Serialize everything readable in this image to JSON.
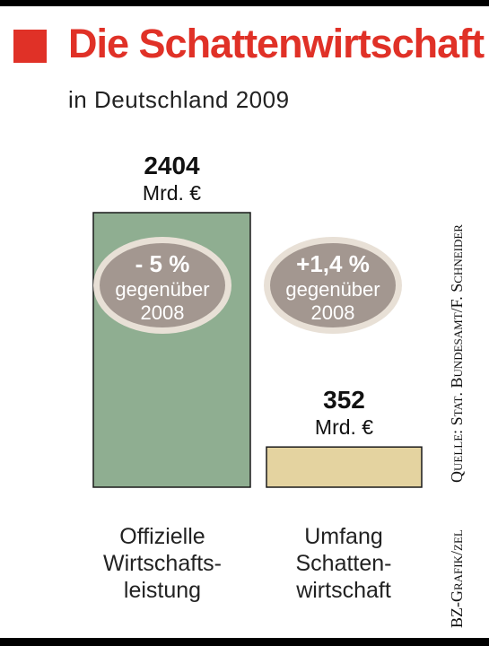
{
  "header": {
    "title": "Die Schattenwirtschaft",
    "subtitle": "in Deutschland 2009",
    "title_color": "#e03127",
    "square_color": "#e03127"
  },
  "side_text": {
    "source": "Quelle: Stat. Bundesamt/F. Schneider",
    "credit": "BZ-Grafik/zel"
  },
  "chart_data": {
    "type": "bar",
    "title": "Die Schattenwirtschaft",
    "subtitle": "in Deutschland 2009",
    "categories": [
      "Offizielle Wirtschaftsleistung",
      "Umfang Schattenwirtschaft"
    ],
    "category_lines": [
      [
        "Offizielle",
        "Wirtschafts-",
        "leistung"
      ],
      [
        "Umfang",
        "Schatten-",
        "wirtschaft"
      ]
    ],
    "values": [
      2404,
      352
    ],
    "value_labels": [
      "2404",
      "352"
    ],
    "unit": "Mrd. €",
    "bar_colors": [
      "#8fae91",
      "#e4d3a0"
    ],
    "change": [
      {
        "value": "- 5 %",
        "text": "gegenüber",
        "year": "2008"
      },
      {
        "value": "+1,4 %",
        "text": "gegenüber",
        "year": "2008"
      }
    ],
    "badge_colors": {
      "fill": "#a39790",
      "ring": "#e8e0d6"
    },
    "ylim": [
      0,
      2404
    ]
  }
}
